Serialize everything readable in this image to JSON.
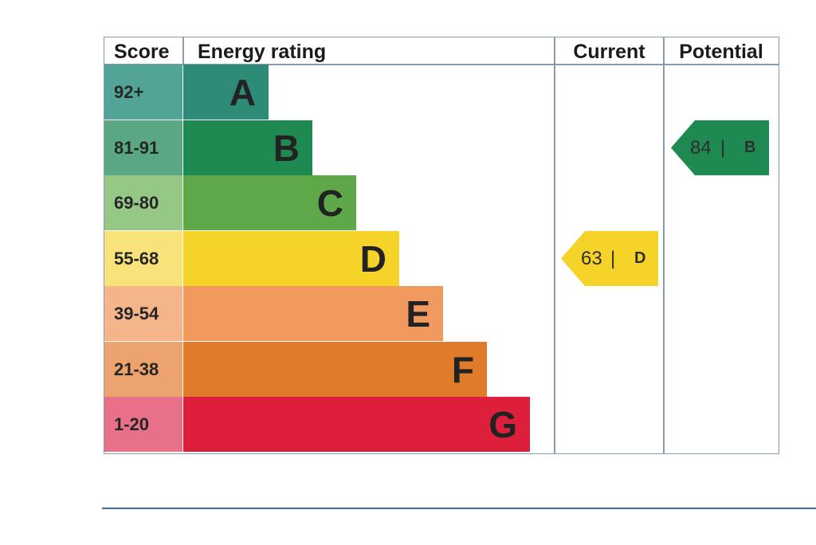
{
  "chart_data": {
    "type": "table",
    "columns": [
      "Score",
      "Energy rating",
      "Current",
      "Potential"
    ],
    "bands": [
      {
        "score": "92+",
        "letter": "A",
        "color": "#2e8b78",
        "score_bg": "#52a596"
      },
      {
        "score": "81-91",
        "letter": "B",
        "color": "#1e8a52",
        "score_bg": "#5aa783"
      },
      {
        "score": "69-80",
        "letter": "C",
        "color": "#5ea84a",
        "score_bg": "#96c885"
      },
      {
        "score": "55-68",
        "letter": "D",
        "color": "#f5d328",
        "score_bg": "#f8e27a"
      },
      {
        "score": "39-54",
        "letter": "E",
        "color": "#f19a5f",
        "score_bg": "#f4b58b"
      },
      {
        "score": "21-38",
        "letter": "F",
        "color": "#e07b2b",
        "score_bg": "#eda36e"
      },
      {
        "score": "1-20",
        "letter": "G",
        "color": "#de1f3b",
        "score_bg": "#e87088"
      }
    ],
    "current": {
      "value": "63",
      "band": "D",
      "color": "#f5d328"
    },
    "potential": {
      "value": "84",
      "band": "B",
      "color": "#1e8a52"
    }
  }
}
